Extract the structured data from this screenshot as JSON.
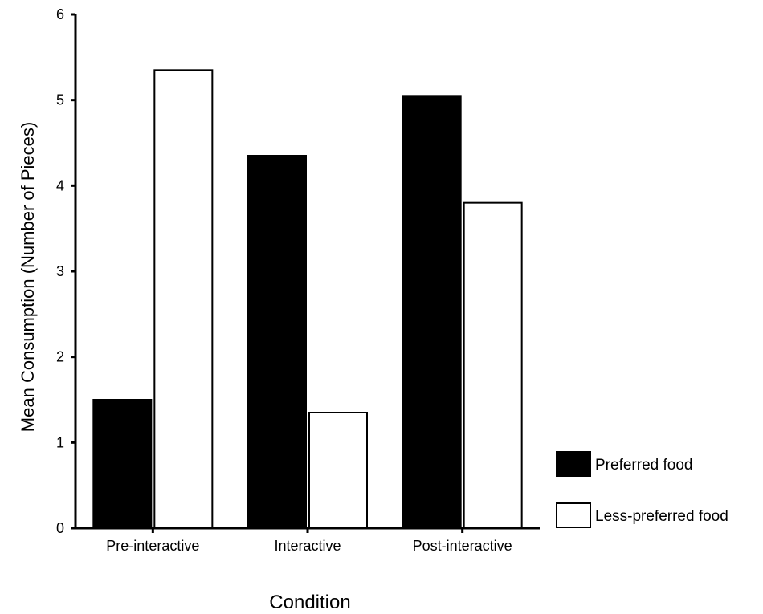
{
  "chart_data": {
    "type": "bar",
    "title": "",
    "xlabel": "Condition",
    "ylabel": "Mean Consumption (Number of Pieces)",
    "ylim": [
      0,
      6
    ],
    "yticks": [
      "0",
      "1",
      "2",
      "3",
      "4",
      "5",
      "6"
    ],
    "categories": [
      "Pre-interactive",
      "Interactive",
      "Post-interactive"
    ],
    "series": [
      {
        "name": "Preferred food",
        "color": "#000000",
        "values": [
          1.5,
          4.35,
          5.05
        ]
      },
      {
        "name": "Less-preferred food",
        "color": "#ffffff",
        "values": [
          5.35,
          1.35,
          3.8
        ]
      }
    ],
    "legend_position": "right",
    "grid": false
  }
}
